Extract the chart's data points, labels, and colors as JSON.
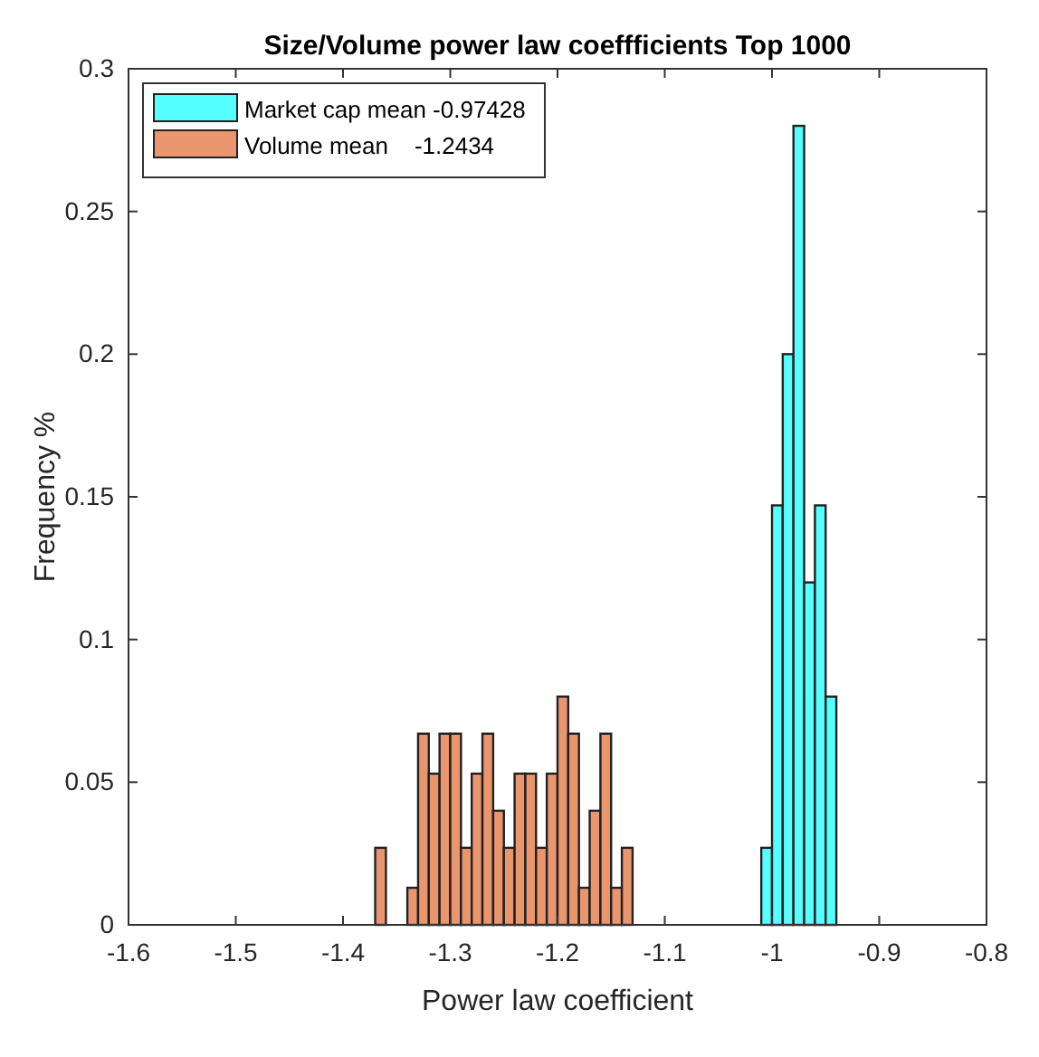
{
  "chart_data": {
    "type": "histogram",
    "title": "Size/Volume power law coeffficients Top 1000",
    "xlabel": "Power law coefficient",
    "ylabel": "Frequency %",
    "xlim": [
      -1.6,
      -0.8
    ],
    "xticks": [
      -1.6,
      -1.5,
      -1.4,
      -1.3,
      -1.2,
      -1.1,
      -1,
      -0.9,
      -0.8
    ],
    "ylim": [
      0,
      0.3
    ],
    "yticks": [
      0,
      0.05,
      0.1,
      0.15,
      0.2,
      0.25,
      0.3
    ],
    "grid": false,
    "legend": "top left",
    "bins": [
      -1.37,
      -1.36,
      -1.35,
      -1.34,
      -1.33,
      -1.32,
      -1.31,
      -1.3,
      -1.29,
      -1.28,
      -1.27,
      -1.26,
      -1.25,
      -1.24,
      -1.23,
      -1.22,
      -1.21,
      -1.2,
      -1.19,
      -1.18,
      -1.17,
      -1.16,
      -1.15,
      -1.14,
      -1.13,
      -1.12,
      -1.11,
      -1.1,
      -1.09,
      -1.08,
      -1.07,
      -1.06,
      -1.05,
      -1.04,
      -1.03,
      -1.02,
      -1.01,
      -1,
      -0.99,
      -0.98,
      -0.97,
      -0.96,
      -0.95,
      -0.94
    ],
    "series": [
      {
        "name": "Market cap mean -0.97428",
        "color": "#55ffff",
        "values": [
          0,
          0,
          0,
          0,
          0,
          0,
          0,
          0,
          0,
          0,
          0,
          0,
          0,
          0,
          0,
          0,
          0,
          0,
          0,
          0,
          0,
          0,
          0,
          0,
          0,
          0,
          0,
          0,
          0,
          0,
          0,
          0,
          0,
          0,
          0,
          0,
          0.027,
          0.147,
          0.2,
          0.28,
          0.12,
          0.147,
          0.08
        ]
      },
      {
        "name": "Volume mean    -1.2434",
        "color": "#e9966e",
        "values": [
          0.027,
          0,
          0,
          0.013,
          0.067,
          0.053,
          0.067,
          0.067,
          0.027,
          0.053,
          0.067,
          0.04,
          0.027,
          0.053,
          0.053,
          0.027,
          0.053,
          0.08,
          0.067,
          0.013,
          0.04,
          0.067,
          0.013,
          0.027,
          0,
          0,
          0,
          0,
          0,
          0,
          0,
          0,
          0,
          0,
          0,
          0,
          0,
          0,
          0,
          0,
          0,
          0,
          0
        ]
      }
    ]
  }
}
